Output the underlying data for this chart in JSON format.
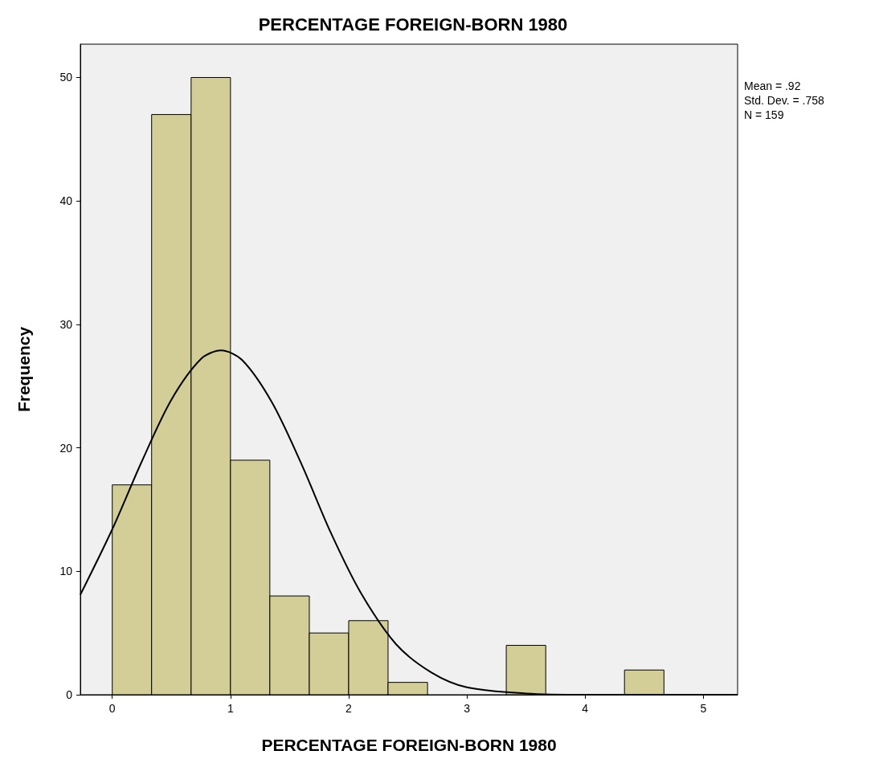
{
  "chart_data": {
    "type": "histogram",
    "title": "PERCENTAGE FOREIGN-BORN 1980",
    "xlabel": "PERCENTAGE FOREIGN-BORN 1980",
    "ylabel": "Frequency",
    "annotations": [
      "Mean = .92",
      "Std. Dev. = .758",
      "N = 159"
    ],
    "xlim": [
      -0.27,
      5.29
    ],
    "xticks": [
      0,
      1,
      2,
      3,
      4,
      5
    ],
    "ylim": [
      0,
      52.7
    ],
    "yticks": [
      0,
      10,
      20,
      30,
      40,
      50
    ],
    "grid": false,
    "series": [
      {
        "color": "#d3ce97",
        "bins": [
          0,
          0.333,
          0.667,
          1,
          1.333,
          1.667,
          2,
          2.333,
          2.667,
          3,
          3.333,
          3.667,
          4,
          4.333,
          4.667,
          5
        ],
        "values": [
          17,
          47,
          50,
          19,
          8,
          5,
          6,
          1,
          0,
          0,
          4,
          0,
          0,
          2,
          0
        ]
      },
      {
        "type": "line",
        "color": "#000000",
        "x": [
          -0.27,
          0,
          0.25,
          0.5,
          0.75,
          0.92,
          1.1,
          1.35,
          1.6,
          1.85,
          2.1,
          2.4,
          2.7,
          3.0,
          3.5,
          4.0,
          5.29
        ],
        "values": [
          8.1,
          13.4,
          18.9,
          23.9,
          27.2,
          27.9,
          27.1,
          23.7,
          18.7,
          13.1,
          8.3,
          4.1,
          1.8,
          0.6,
          0.1,
          0,
          0
        ]
      }
    ]
  }
}
